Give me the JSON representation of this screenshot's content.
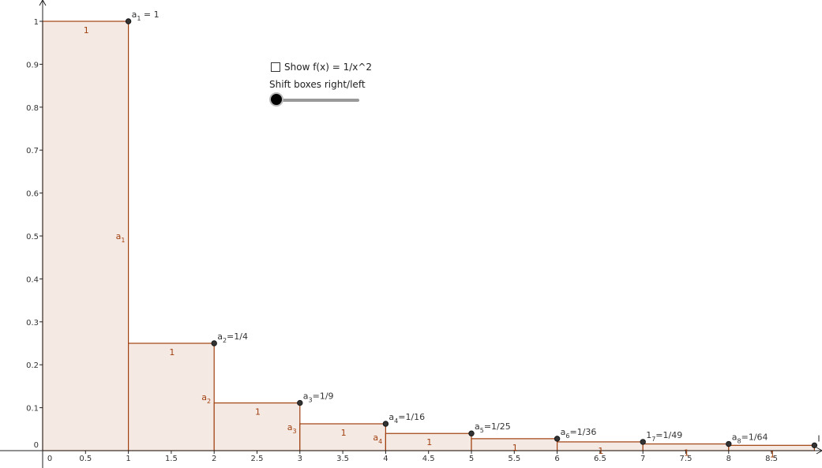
{
  "chart_data": {
    "type": "bar",
    "axes": {
      "xlim": [
        -0.5,
        9.0
      ],
      "ylim": [
        -0.01,
        1.03
      ],
      "x_ticks": [
        "0",
        "0.5",
        "1",
        "1.5",
        "2",
        "2.5",
        "3",
        "3.5",
        "4",
        "4.5",
        "5",
        "5.5",
        "6",
        "6.5",
        "7",
        "7.5",
        "8",
        "8.5"
      ],
      "x_tick_values": [
        0,
        0.5,
        1,
        1.5,
        2,
        2.5,
        3,
        3.5,
        4,
        4.5,
        5,
        5.5,
        6,
        6.5,
        7,
        7.5,
        8,
        8.5
      ],
      "y_ticks": [
        "0",
        "0.1",
        "0.2",
        "0.3",
        "0.4",
        "0.5",
        "0.6",
        "0.7",
        "0.8",
        "0.9",
        "1"
      ],
      "y_tick_values": [
        0,
        0.1,
        0.2,
        0.3,
        0.4,
        0.5,
        0.6,
        0.7,
        0.8,
        0.9,
        1
      ]
    },
    "boxes": [
      {
        "x0": 0,
        "x1": 1,
        "height": 1,
        "width_label": "1",
        "height_label": "a",
        "height_label_sub": "1"
      },
      {
        "x0": 1,
        "x1": 2,
        "height": 0.25,
        "width_label": "1",
        "height_label": "a",
        "height_label_sub": "2"
      },
      {
        "x0": 2,
        "x1": 3,
        "height": 0.1111,
        "width_label": "1",
        "height_label": "a",
        "height_label_sub": "3"
      },
      {
        "x0": 3,
        "x1": 4,
        "height": 0.0625,
        "width_label": "1",
        "height_label": "a",
        "height_label_sub": "4"
      },
      {
        "x0": 4,
        "x1": 5,
        "height": 0.04,
        "width_label": "1"
      },
      {
        "x0": 5,
        "x1": 6,
        "height": 0.0278,
        "width_label": "1"
      },
      {
        "x0": 6,
        "x1": 7,
        "height": 0.0204,
        "width_label": "1"
      },
      {
        "x0": 7,
        "x1": 8,
        "height": 0.0156,
        "width_label": "1"
      },
      {
        "x0": 8,
        "x1": 9,
        "height": 0.0123,
        "width_label": "1"
      }
    ],
    "points": [
      {
        "x": 1,
        "y": 1,
        "prefix": "a",
        "sub": "1",
        "suffix": " = 1"
      },
      {
        "x": 2,
        "y": 0.25,
        "prefix": "a",
        "sub": "2",
        "suffix": "=1/4"
      },
      {
        "x": 3,
        "y": 0.1111,
        "prefix": "a",
        "sub": "3",
        "suffix": "=1/9"
      },
      {
        "x": 4,
        "y": 0.0625,
        "prefix": "a",
        "sub": "4",
        "suffix": "=1/16"
      },
      {
        "x": 5,
        "y": 0.04,
        "prefix": "a",
        "sub": "5",
        "suffix": "=1/25"
      },
      {
        "x": 6,
        "y": 0.0278,
        "prefix": "a",
        "sub": "6",
        "suffix": "=1/36"
      },
      {
        "x": 7,
        "y": 0.0204,
        "prefix": "1",
        "sub": "7",
        "suffix": "=1/49"
      },
      {
        "x": 8,
        "y": 0.0156,
        "prefix": "a",
        "sub": "8",
        "suffix": "=1/64"
      },
      {
        "x": 9,
        "y": 0.0123,
        "prefix": "I",
        "sub": "",
        "suffix": ""
      }
    ],
    "colors": {
      "box_fill": "#f5e9e4",
      "box_stroke": "#a0400f",
      "label": "#a0400f",
      "point": "#333333"
    }
  },
  "controls": {
    "checkbox_label": "Show f(x) = 1/x^2",
    "checkbox_checked": false,
    "slider_label": "Shift boxes right/left",
    "slider_value": 0
  }
}
